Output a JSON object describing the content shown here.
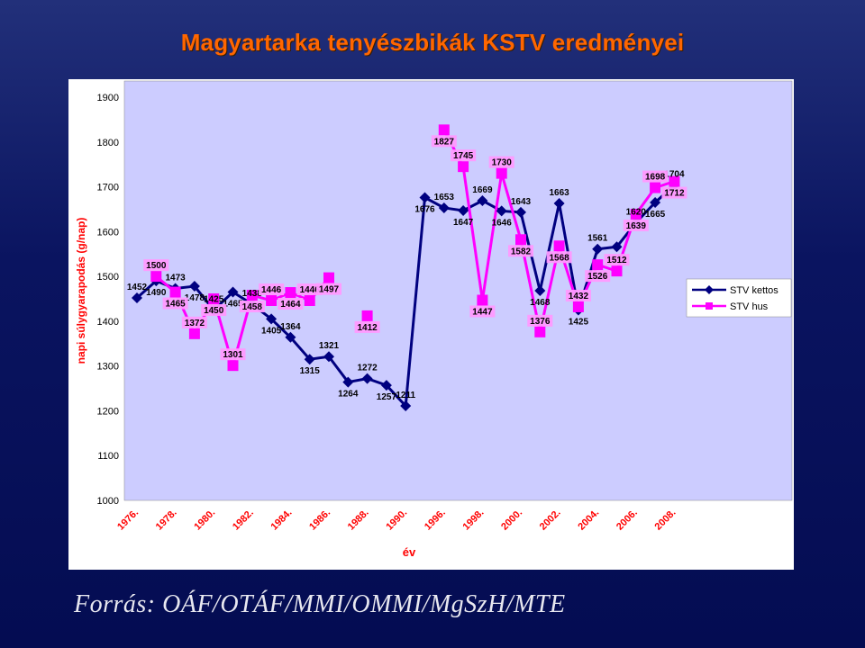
{
  "slide": {
    "title": "Magyartarka tenyészbikák KSTV eredményei",
    "source": "Forrás: OÁF/OTÁF/MMI/OMMI/MgSzH/MTE"
  },
  "colors": {
    "background": "#0a1460",
    "title": "#ff6600",
    "plot_area": "#ccccff",
    "kettos": "#000080",
    "hus": "#ff00ff"
  },
  "chart_data": {
    "type": "line",
    "title": "",
    "xlabel": "év",
    "ylabel": "napi súlygyarapodás (g/nap)",
    "ylim": [
      1000,
      1900
    ],
    "yticks": [
      "1000",
      "1100",
      "1200",
      "1300",
      "1400",
      "1500",
      "1600",
      "1700",
      "1800",
      "1900"
    ],
    "xticklabels": [
      "1976.",
      "1978.",
      "1980.",
      "1982.",
      "1984.",
      "1986.",
      "1988.",
      "1990.",
      "1996.",
      "1998.",
      "2000.",
      "2002.",
      "2004.",
      "2006.",
      "2008."
    ],
    "grid": false,
    "legend_position": "right",
    "series": [
      {
        "name": "STV kettos",
        "color": "#000080",
        "marker": "diamond",
        "values": [
          1452,
          1490,
          1473,
          1478,
          1425,
          1465,
          1438,
          1405,
          1364,
          1315,
          1321,
          1264,
          1272,
          1257,
          1211,
          1676,
          1653,
          1647,
          1669,
          1646,
          1643,
          1468,
          1663,
          1425,
          1561,
          1566,
          1620,
          1665,
          1704
        ]
      },
      {
        "name": "STV hus",
        "color": "#ff00ff",
        "marker": "square",
        "values": [
          null,
          1500,
          1465,
          1372,
          1450,
          1301,
          1458,
          1446,
          1464,
          1446,
          1497,
          null,
          1412,
          null,
          null,
          null,
          1827,
          1745,
          1447,
          1730,
          1582,
          1376,
          1568,
          1432,
          1526,
          1512,
          1639,
          1698,
          1712
        ]
      }
    ]
  }
}
